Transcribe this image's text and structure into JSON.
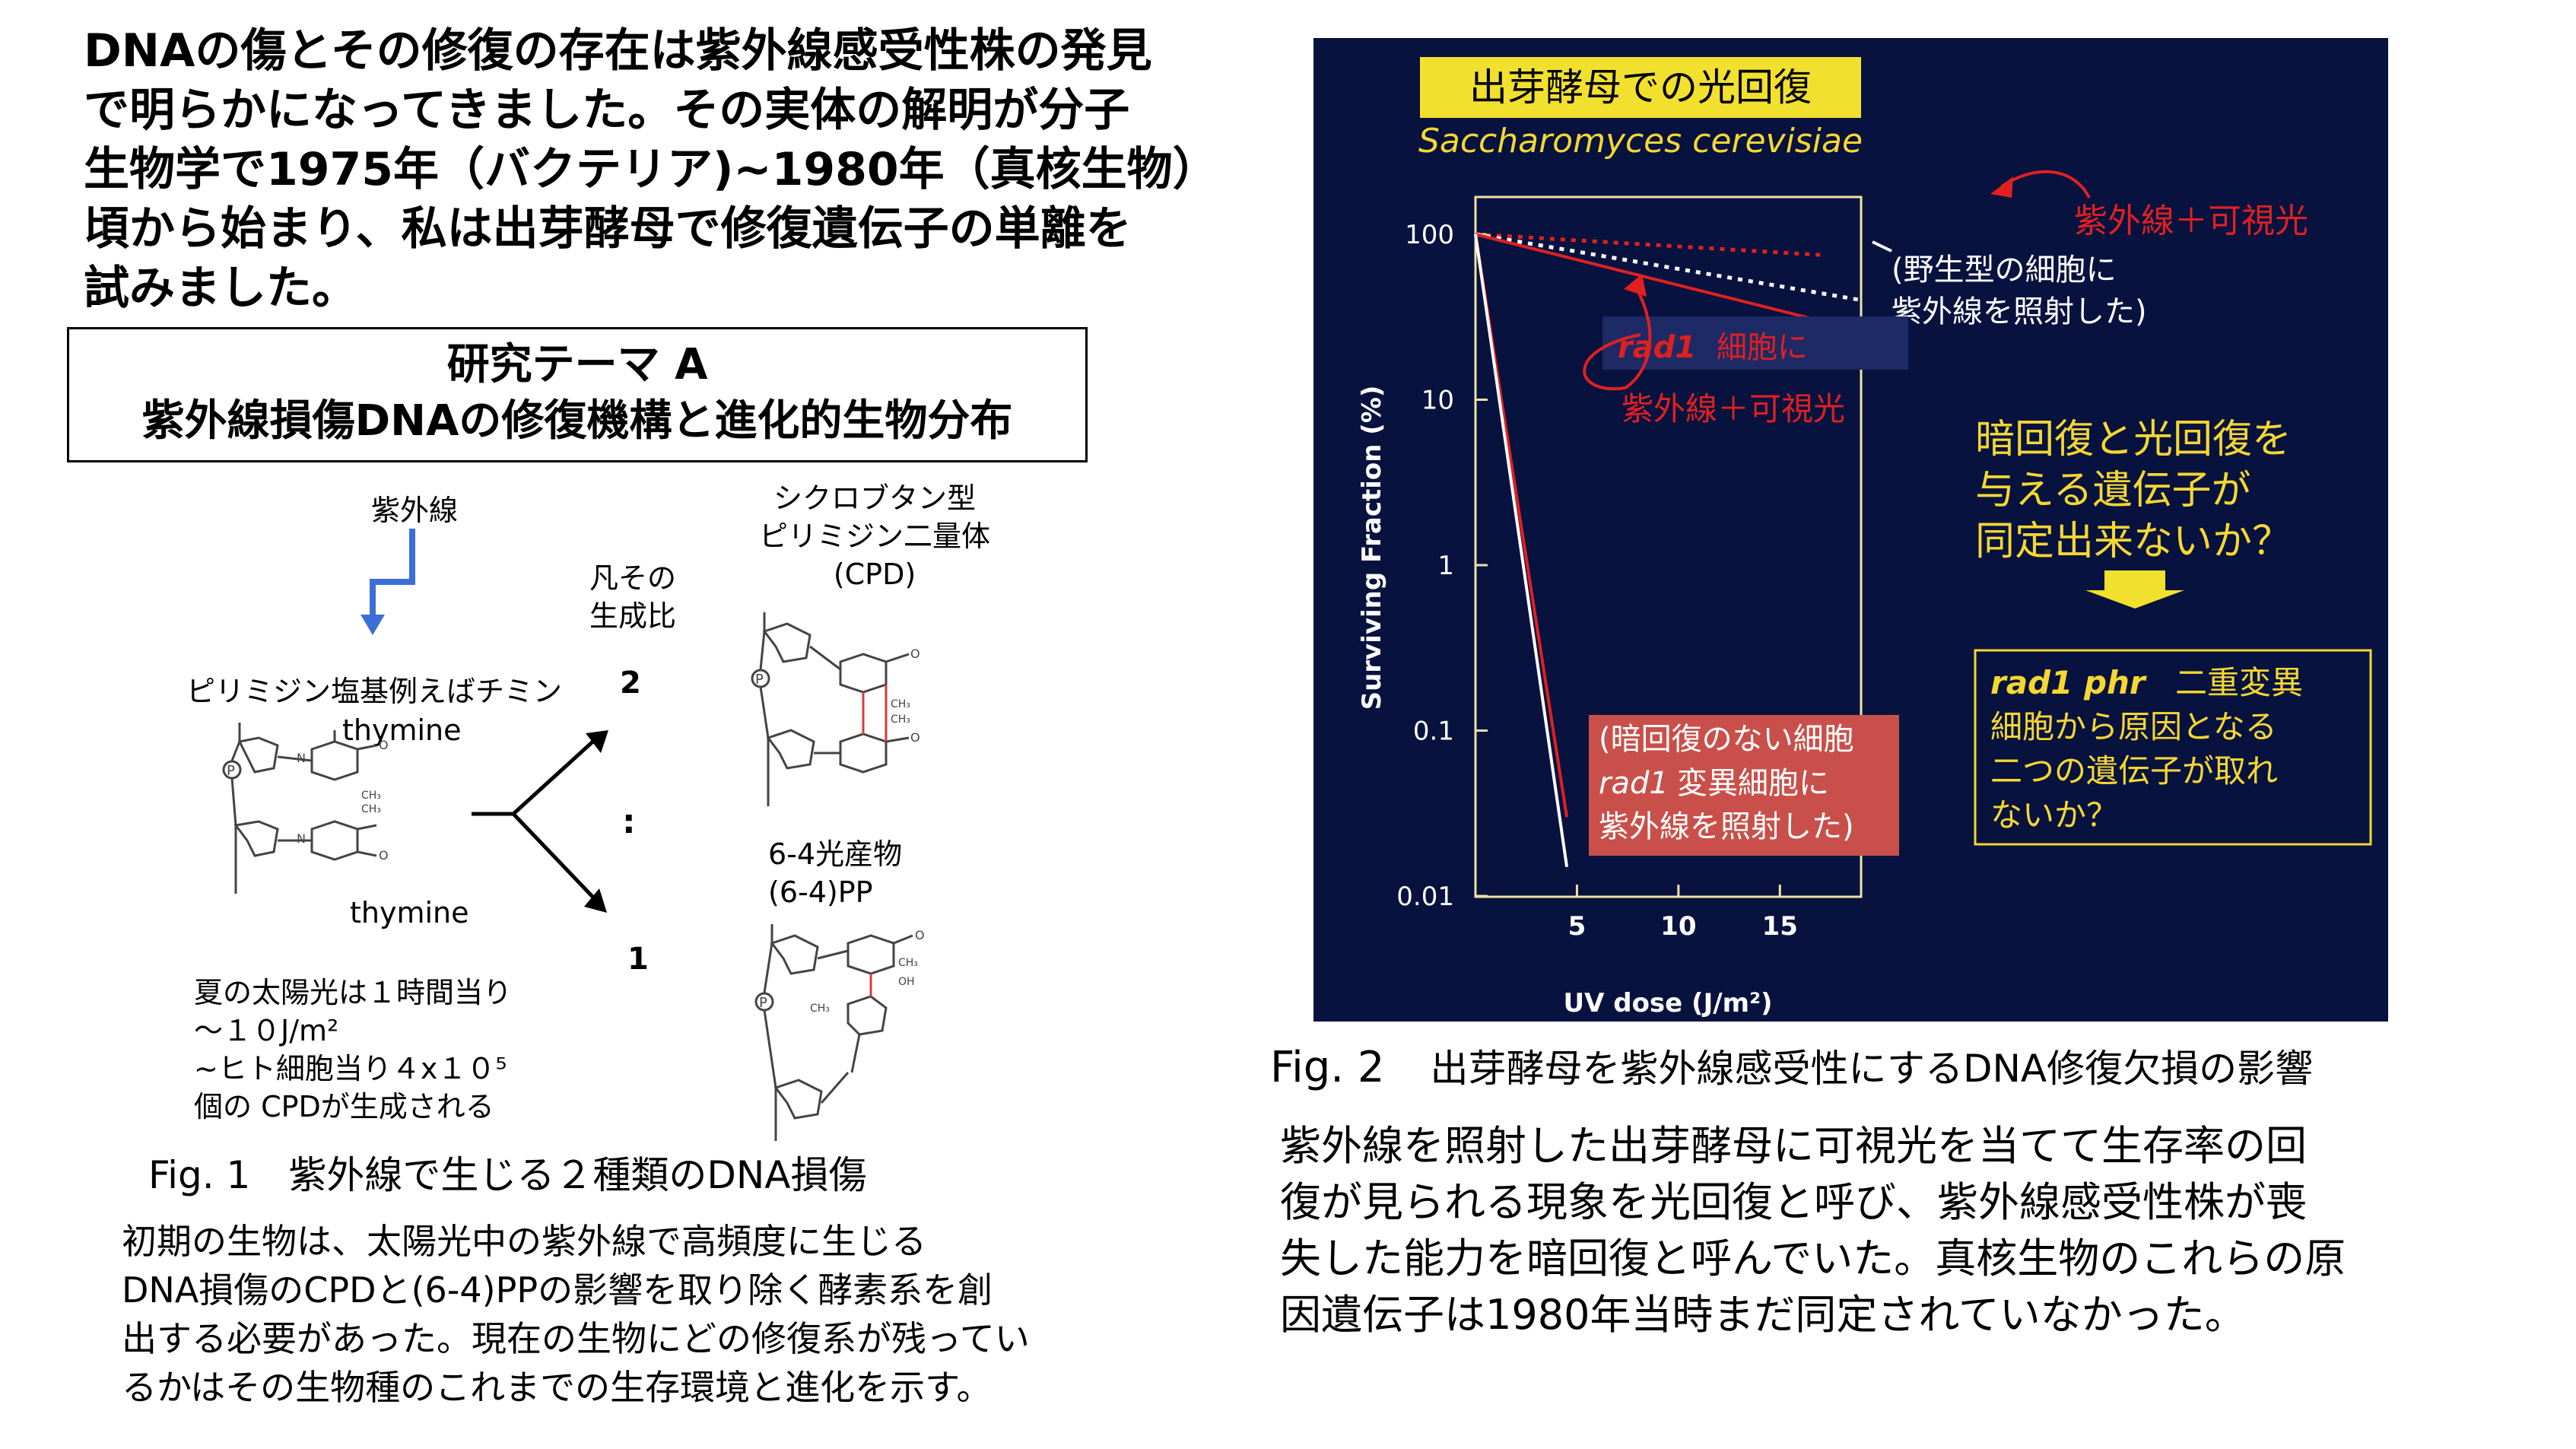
{
  "intro": {
    "lines": [
      "DNAの傷とその修復の存在は紫外線感受性株の発見",
      "で明らかになってきました。その実体の解明が分子",
      "生物学で1975年（バクテリア)~1980年（真核生物）",
      "頃から始まり、私は出芽酵母で修復遺伝子の単離を",
      "試みました。"
    ]
  },
  "theme": {
    "title": "研究テーマ A",
    "subtitle": "紫外線損傷DNAの修復機構と進化的生物分布"
  },
  "fig1": {
    "uv_label": "紫外線",
    "cpd_label": [
      "シクロブタン型",
      "ピリミジン二量体",
      "(CPD)"
    ],
    "ratio_label": [
      "凡その",
      "生成比"
    ],
    "pyrimidine_label": "ピリミジン塩基例えばチミン",
    "ratio_top": "2",
    "ratio_colon": ":",
    "ratio_bottom": "1",
    "thymine": "thymine",
    "pp_label": [
      "6-4光産物",
      "(6-4)PP"
    ],
    "sun_note": [
      "夏の太陽光は１時間当り",
      "～１０J/m²",
      "~ヒト細胞当り４x１０⁵",
      "個の CPDが生成される"
    ],
    "caption": "Fig. 1　紫外線で生じる２種類のDNA損傷",
    "paragraph": [
      "初期の生物は、太陽光中の紫外線で高頻度に生じる",
      "DNA損傷のCPDと(6-4)PPの影響を取り除く酵素系を創",
      "出する必要があった。現在の生物にどの修復系が残ってい",
      "るかはその生物種のこれまでの生存環境と進化を示す。"
    ]
  },
  "fig2": {
    "title": "出芽酵母での光回復",
    "species": "Saccharomyces cerevisiae",
    "annot_uv_vis": "紫外線＋可視光",
    "annot_wild": [
      "(野生型の細胞に",
      "紫外線を照射した)"
    ],
    "annot_rad1_a": "rad1",
    "annot_rad1_b": "細胞に",
    "annot_rad1_c": "紫外線＋可視光",
    "annot_dark": [
      "(暗回復のない細胞",
      "変異細胞に",
      "紫外線を照射した)"
    ],
    "annot_dark_rad1": "rad1",
    "question": [
      "暗回復と光回復を",
      "与える遺伝子が",
      "同定出来ないか？"
    ],
    "double_mut_a": "rad1 phr",
    "double_mut": [
      "二重変異",
      "細胞から原因となる",
      "二つの遺伝子が取れ",
      "ないか？"
    ],
    "caption_num": "Fig. 2",
    "caption_text": "出芽酵母を紫外線感受性にするDNA修復欠損の影響",
    "paragraph": [
      "紫外線を照射した出芽酵母に可視光を当てて生存率の回",
      "復が見られる現象を光回復と呼び、紫外線感受性株が喪",
      "失した能力を暗回復と呼んでいた。真核生物のこれらの原",
      "因遺伝子は1980年当時まだ同定されていなかった。"
    ]
  },
  "chart_data": {
    "type": "line",
    "xlabel": "UV dose (J/m²)",
    "ylabel": "Surviving Fraction (%)",
    "x_ticks": [
      "5",
      "10",
      "15"
    ],
    "y_ticks": [
      "100",
      "10",
      "1",
      "0.1",
      "0.01"
    ],
    "xlim": [
      0,
      19
    ],
    "ylim": [
      0.01,
      100
    ],
    "yscale": "log",
    "series": [
      {
        "color": "#e02020",
        "style": "dotted",
        "x": [
          0,
          17
        ],
        "y": [
          100,
          75
        ]
      },
      {
        "color": "#ffffff",
        "style": "dotted",
        "x": [
          0,
          19
        ],
        "y": [
          100,
          40
        ]
      },
      {
        "color": "#e02020",
        "style": "solid",
        "x": [
          0,
          17
        ],
        "y": [
          100,
          30
        ]
      },
      {
        "color": "#e02020",
        "style": "solid",
        "x": [
          0,
          4.5
        ],
        "y": [
          100,
          0.03
        ]
      },
      {
        "color": "#ffffff",
        "style": "solid",
        "x": [
          0,
          4.5
        ],
        "y": [
          100,
          0.015
        ]
      }
    ]
  },
  "colors": {
    "panel_bg": "#07123f",
    "title_box": "#f2e02e",
    "yellow_text": "#f5d732",
    "red": "#e02020",
    "dark_box": "#c9504a",
    "uv_arrow": "#3b6fd8"
  }
}
